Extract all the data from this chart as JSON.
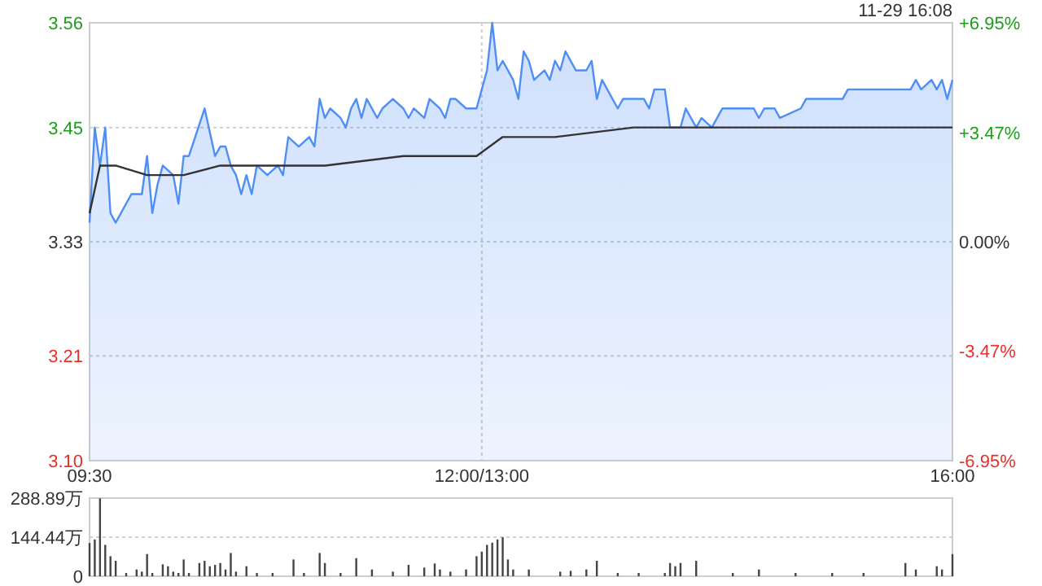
{
  "chart_data": [
    {
      "type": "line",
      "annotations": [
        "11-29 16:08"
      ],
      "categories": [
        "09:30",
        null,
        null,
        null,
        null,
        null,
        null,
        null,
        null,
        null,
        null,
        null,
        null,
        null,
        null,
        null,
        null,
        null,
        null,
        null,
        null,
        null,
        null,
        null,
        null,
        null,
        null,
        null,
        null,
        null,
        null,
        null,
        null,
        null,
        null,
        null,
        null,
        null,
        null,
        null,
        null,
        null,
        null,
        null,
        null,
        null,
        null,
        null,
        null,
        null,
        null,
        null,
        null,
        null,
        null,
        null,
        null,
        null,
        null,
        null,
        null,
        null,
        null,
        null,
        null,
        null,
        null,
        null,
        null,
        null,
        null,
        null,
        null,
        null,
        null,
        "12:00/13:00",
        null,
        null,
        null,
        null,
        null,
        null,
        null,
        null,
        null,
        null,
        null,
        null,
        null,
        null,
        null,
        null,
        null,
        null,
        null,
        null,
        null,
        null,
        null,
        null,
        null,
        null,
        null,
        null,
        null,
        null,
        null,
        null,
        null,
        null,
        null,
        null,
        null,
        null,
        null,
        null,
        null,
        null,
        null,
        null,
        null,
        null,
        null,
        null,
        null,
        null,
        null,
        null,
        null,
        null,
        null,
        null,
        null,
        null,
        null,
        null,
        null,
        null,
        null,
        null,
        null,
        null,
        null,
        null,
        null,
        null,
        null,
        null,
        null,
        null,
        null,
        null,
        null,
        null,
        null,
        null,
        null,
        null,
        null,
        null,
        null,
        null,
        null,
        null,
        null,
        "16:00"
      ],
      "ylim": [
        3.1,
        3.56
      ],
      "yticks": [
        {
          "value": 3.1,
          "label": "3.10"
        },
        3.21,
        3.33,
        3.45,
        3.56
      ],
      "y2lim": [
        -6.95,
        6.95
      ],
      "y2ticks": [
        {
          "value": -6.95,
          "label": "-6.95%"
        },
        {
          "value": -3.47,
          "label": "-3.47%"
        },
        {
          "value": 0,
          "label": "0.00%"
        },
        {
          "value": 3.47,
          "label": "+3.47%"
        },
        {
          "value": 6.95,
          "label": "+6.95%"
        }
      ],
      "grid": true,
      "line_style": "solid",
      "series": [
        {
          "type": "area",
          "color": "#4f8ef5",
          "values": [
            3.35,
            3.45,
            3.41,
            3.45,
            3.36,
            3.35,
            null,
            null,
            3.38,
            null,
            3.38,
            3.42,
            3.36,
            3.39,
            3.41,
            null,
            3.4,
            3.37,
            3.42,
            3.42,
            null,
            null,
            3.47,
            null,
            3.42,
            3.43,
            3.43,
            3.41,
            3.4,
            3.38,
            3.4,
            3.38,
            3.41,
            null,
            3.4,
            null,
            3.41,
            3.4,
            3.44,
            null,
            3.43,
            null,
            3.44,
            3.43,
            3.48,
            3.46,
            3.47,
            null,
            3.46,
            3.45,
            3.47,
            3.48,
            3.46,
            3.48,
            null,
            3.46,
            3.47,
            null,
            3.48,
            null,
            3.47,
            3.46,
            3.47,
            null,
            3.46,
            3.48,
            null,
            3.47,
            3.46,
            3.48,
            3.48,
            null,
            3.47,
            null,
            3.47,
            3.49,
            3.51,
            3.56,
            3.51,
            3.52,
            null,
            3.5,
            3.48,
            3.53,
            3.52,
            3.5,
            null,
            3.51,
            3.5,
            3.52,
            3.51,
            3.53,
            null,
            3.51,
            null,
            3.51,
            3.52,
            3.48,
            3.5,
            3.49,
            null,
            3.47,
            3.48,
            null,
            null,
            null,
            3.48,
            3.47,
            3.49,
            null,
            3.49,
            3.45,
            null,
            3.45,
            3.47,
            null,
            3.45,
            3.46,
            null,
            3.45,
            null,
            3.47,
            null,
            null,
            null,
            null,
            null,
            3.47,
            3.46,
            3.47,
            null,
            3.47,
            3.46,
            null,
            null,
            null,
            3.47,
            3.48,
            null,
            null,
            null,
            null,
            null,
            null,
            3.48,
            3.49,
            null,
            null,
            null,
            null,
            null,
            null,
            null,
            null,
            null,
            null,
            null,
            3.49,
            3.5,
            3.49,
            null,
            3.5,
            3.49,
            3.5,
            3.48,
            3.5
          ]
        },
        {
          "color": "#333333",
          "values": [
            3.36,
            null,
            3.41,
            3.41,
            null,
            3.41,
            null,
            null,
            null,
            null,
            null,
            3.4,
            null,
            null,
            null,
            null,
            null,
            null,
            3.4,
            null,
            null,
            null,
            null,
            null,
            null,
            3.41,
            null,
            null,
            null,
            null,
            null,
            null,
            null,
            null,
            null,
            null,
            null,
            null,
            3.41,
            null,
            null,
            null,
            null,
            null,
            null,
            3.41,
            null,
            null,
            null,
            null,
            null,
            null,
            null,
            null,
            null,
            null,
            null,
            null,
            null,
            null,
            3.42,
            null,
            null,
            null,
            null,
            null,
            null,
            null,
            null,
            null,
            null,
            null,
            null,
            null,
            3.42,
            null,
            null,
            null,
            null,
            3.44,
            null,
            null,
            null,
            null,
            null,
            null,
            null,
            null,
            null,
            3.44,
            null,
            null,
            null,
            null,
            null,
            null,
            null,
            null,
            null,
            null,
            null,
            null,
            null,
            null,
            3.45,
            null,
            null,
            null,
            null,
            null,
            null,
            null,
            null,
            null,
            null,
            null,
            null,
            null,
            null,
            null,
            3.45,
            null,
            null,
            null,
            null,
            null,
            null,
            null,
            null,
            null,
            null,
            null,
            null,
            null,
            null,
            null,
            null,
            null,
            null,
            null,
            null,
            null,
            null,
            null,
            null,
            null,
            null,
            null,
            3.45,
            null,
            null,
            null,
            null,
            null,
            null,
            null,
            null,
            null,
            null,
            null,
            null,
            null,
            null,
            null,
            null,
            3.45
          ]
        }
      ]
    },
    {
      "type": "bar",
      "color": "#444444",
      "categories": [
        null,
        null,
        null,
        null,
        null,
        null,
        null,
        null,
        null,
        null,
        null,
        null,
        null,
        null,
        null,
        null,
        null,
        null,
        null,
        null,
        null,
        null,
        null,
        null,
        null,
        null,
        null,
        null,
        null,
        null,
        null,
        null,
        null,
        null,
        null,
        null,
        null,
        null,
        null,
        null,
        null,
        null,
        null,
        null,
        null,
        null,
        null,
        null,
        null,
        null,
        null,
        null,
        null,
        null,
        null,
        null,
        null,
        null,
        null,
        null,
        null,
        null,
        null,
        null,
        null,
        null,
        null,
        null,
        null,
        null,
        null,
        null,
        null,
        null,
        null,
        null,
        null,
        null,
        null,
        null,
        null,
        null,
        null,
        null,
        null,
        null,
        null,
        null,
        null,
        null,
        null,
        null,
        null,
        null,
        null,
        null,
        null,
        null,
        null,
        null,
        null,
        null,
        null,
        null,
        null,
        null,
        null,
        null,
        null,
        null,
        null,
        null,
        null,
        null,
        null,
        null,
        null,
        null,
        null,
        null,
        null,
        null,
        null,
        null,
        null,
        null,
        null,
        null,
        null,
        null,
        null,
        null,
        null,
        null,
        null,
        null,
        null,
        null,
        null,
        null,
        null,
        null,
        null,
        null,
        null,
        null,
        null,
        null,
        null,
        null,
        null,
        null,
        null,
        null,
        null,
        null,
        null,
        null,
        null,
        null,
        null,
        null,
        null,
        null,
        null,
        null
      ],
      "ylim": [
        0,
        288.89
      ],
      "yticks": [
        0,
        {
          "value": 144.44,
          "label": "144.44万"
        },
        {
          "value": 288.89,
          "label": "288.89万"
        }
      ],
      "grid": "y",
      "tick_labels": "y",
      "values": [
        123,
        136,
        288,
        116,
        74,
        57,
        null,
        12,
        null,
        25,
        17,
        82,
        12,
        null,
        44,
        37,
        17,
        12,
        62,
        12,
        null,
        49,
        57,
        37,
        42,
        49,
        25,
        86,
        17,
        null,
        37,
        null,
        12,
        null,
        null,
        12,
        null,
        null,
        null,
        62,
        null,
        12,
        null,
        null,
        86,
        49,
        null,
        null,
        12,
        null,
        null,
        67,
        null,
        null,
        25,
        null,
        null,
        null,
        17,
        null,
        null,
        42,
        null,
        null,
        32,
        null,
        47,
        25,
        null,
        17,
        null,
        null,
        25,
        null,
        74,
        91,
        116,
        124,
        136,
        144,
        62,
        25,
        null,
        null,
        25,
        null,
        null,
        null,
        null,
        null,
        17,
        null,
        20,
        null,
        null,
        25,
        null,
        57,
        null,
        null,
        null,
        12,
        null,
        null,
        null,
        12,
        null,
        null,
        null,
        null,
        12,
        49,
        37,
        49,
        null,
        null,
        57,
        null,
        null,
        null,
        null,
        null,
        null,
        12,
        null,
        null,
        null,
        null,
        25,
        null,
        null,
        null,
        null,
        null,
        null,
        12,
        null,
        null,
        null,
        null,
        null,
        null,
        12,
        null,
        null,
        null,
        null,
        null,
        12,
        null,
        null,
        null,
        null,
        null,
        null,
        null,
        49,
        null,
        25,
        null,
        null,
        null,
        37,
        25,
        null,
        82
      ]
    }
  ]
}
